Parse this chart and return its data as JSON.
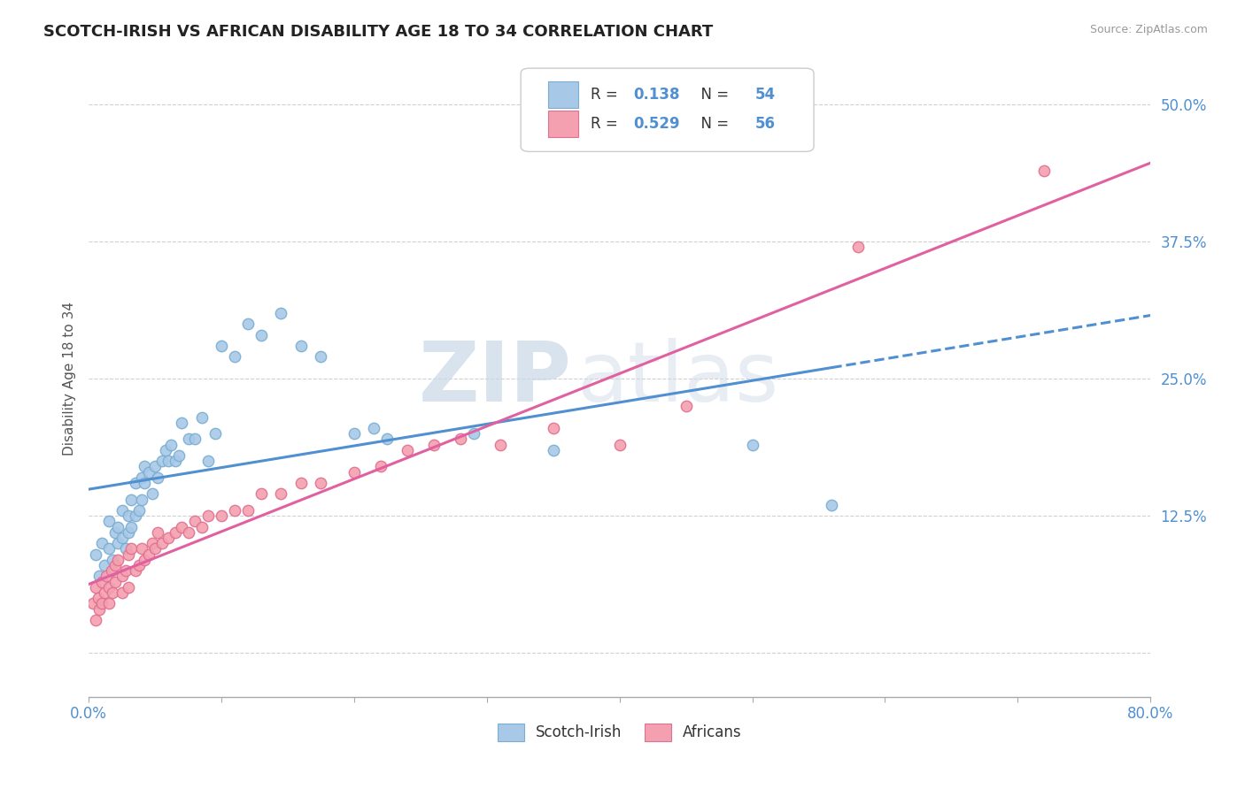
{
  "title": "SCOTCH-IRISH VS AFRICAN DISABILITY AGE 18 TO 34 CORRELATION CHART",
  "source": "Source: ZipAtlas.com",
  "ylabel": "Disability Age 18 to 34",
  "xlim": [
    0.0,
    0.8
  ],
  "ylim": [
    -0.04,
    0.54
  ],
  "xticks": [
    0.0,
    0.1,
    0.2,
    0.3,
    0.4,
    0.5,
    0.6,
    0.7,
    0.8
  ],
  "xticklabels": [
    "0.0%",
    "",
    "",
    "",
    "",
    "",
    "",
    "",
    "80.0%"
  ],
  "yticks": [
    0.0,
    0.125,
    0.25,
    0.375,
    0.5
  ],
  "yticklabels": [
    "",
    "12.5%",
    "25.0%",
    "37.5%",
    "50.0%"
  ],
  "blue_R": 0.138,
  "blue_N": 54,
  "pink_R": 0.529,
  "pink_N": 56,
  "blue_color": "#a8c8e8",
  "pink_color": "#f4a0b0",
  "blue_edge": "#7aaed0",
  "pink_edge": "#e07090",
  "trend_blue": "#5090d0",
  "trend_pink": "#e060a0",
  "watermark_zip": "ZIP",
  "watermark_atlas": "atlas",
  "background_color": "#ffffff",
  "grid_color": "#d0d0d0",
  "blue_scatter_x": [
    0.005,
    0.008,
    0.01,
    0.012,
    0.015,
    0.015,
    0.018,
    0.02,
    0.022,
    0.022,
    0.025,
    0.025,
    0.028,
    0.03,
    0.03,
    0.032,
    0.032,
    0.035,
    0.035,
    0.038,
    0.04,
    0.04,
    0.042,
    0.042,
    0.045,
    0.048,
    0.05,
    0.052,
    0.055,
    0.058,
    0.06,
    0.062,
    0.065,
    0.068,
    0.07,
    0.075,
    0.08,
    0.085,
    0.09,
    0.095,
    0.1,
    0.11,
    0.12,
    0.13,
    0.145,
    0.16,
    0.175,
    0.2,
    0.215,
    0.225,
    0.29,
    0.35,
    0.5,
    0.56
  ],
  "blue_scatter_y": [
    0.09,
    0.07,
    0.1,
    0.08,
    0.12,
    0.095,
    0.085,
    0.11,
    0.115,
    0.1,
    0.13,
    0.105,
    0.095,
    0.125,
    0.11,
    0.14,
    0.115,
    0.155,
    0.125,
    0.13,
    0.16,
    0.14,
    0.155,
    0.17,
    0.165,
    0.145,
    0.17,
    0.16,
    0.175,
    0.185,
    0.175,
    0.19,
    0.175,
    0.18,
    0.21,
    0.195,
    0.195,
    0.215,
    0.175,
    0.2,
    0.28,
    0.27,
    0.3,
    0.29,
    0.31,
    0.28,
    0.27,
    0.2,
    0.205,
    0.195,
    0.2,
    0.185,
    0.19,
    0.135
  ],
  "pink_scatter_x": [
    0.003,
    0.005,
    0.005,
    0.007,
    0.008,
    0.01,
    0.01,
    0.012,
    0.013,
    0.015,
    0.015,
    0.017,
    0.018,
    0.02,
    0.02,
    0.022,
    0.025,
    0.025,
    0.028,
    0.03,
    0.03,
    0.032,
    0.035,
    0.038,
    0.04,
    0.042,
    0.045,
    0.048,
    0.05,
    0.052,
    0.055,
    0.06,
    0.065,
    0.07,
    0.075,
    0.08,
    0.085,
    0.09,
    0.1,
    0.11,
    0.12,
    0.13,
    0.145,
    0.16,
    0.175,
    0.2,
    0.22,
    0.24,
    0.26,
    0.28,
    0.31,
    0.35,
    0.4,
    0.45,
    0.58,
    0.72
  ],
  "pink_scatter_y": [
    0.045,
    0.03,
    0.06,
    0.05,
    0.04,
    0.065,
    0.045,
    0.055,
    0.07,
    0.06,
    0.045,
    0.075,
    0.055,
    0.08,
    0.065,
    0.085,
    0.07,
    0.055,
    0.075,
    0.09,
    0.06,
    0.095,
    0.075,
    0.08,
    0.095,
    0.085,
    0.09,
    0.1,
    0.095,
    0.11,
    0.1,
    0.105,
    0.11,
    0.115,
    0.11,
    0.12,
    0.115,
    0.125,
    0.125,
    0.13,
    0.13,
    0.145,
    0.145,
    0.155,
    0.155,
    0.165,
    0.17,
    0.185,
    0.19,
    0.195,
    0.19,
    0.205,
    0.19,
    0.225,
    0.37,
    0.44
  ]
}
